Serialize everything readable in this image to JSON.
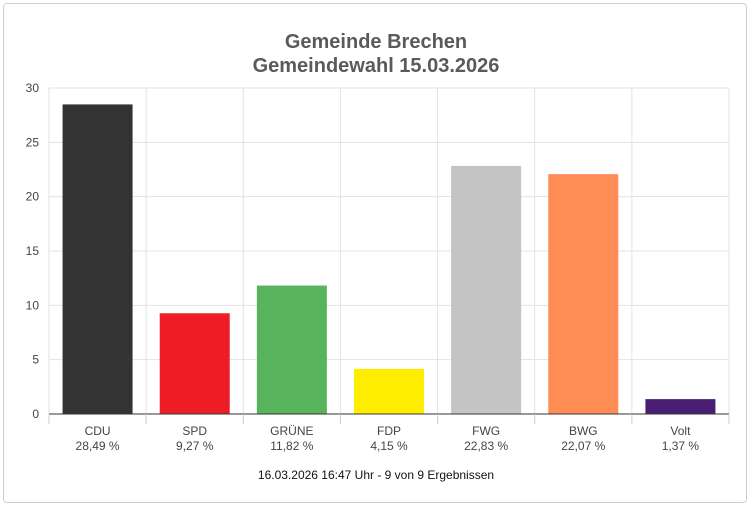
{
  "chart_data": {
    "type": "bar",
    "title": "Gemeinde Brechen",
    "subtitle": "Gemeindewahl 15.03.2026",
    "categories": [
      "CDU",
      "SPD",
      "GRÜNE",
      "FDP",
      "FWG",
      "BWG",
      "Volt"
    ],
    "values": [
      28.49,
      9.27,
      11.82,
      4.15,
      22.83,
      22.07,
      1.37
    ],
    "value_labels": [
      "28,49 %",
      "9,27 %",
      "11,82 %",
      "4,15 %",
      "22,83 %",
      "22,07 %",
      "1,37 %"
    ],
    "colors": [
      "#333333",
      "#ee1c25",
      "#57b35c",
      "#ffed00",
      "#c4c4c4",
      "#ff8c55",
      "#4a1f73"
    ],
    "yticks": [
      0,
      5,
      10,
      15,
      20,
      25,
      30
    ],
    "ylim": [
      0,
      30
    ],
    "xlabel": "",
    "ylabel": "",
    "grid": true,
    "footer": "16.03.2026 16:47 Uhr - 9 von 9 Ergebnissen"
  }
}
